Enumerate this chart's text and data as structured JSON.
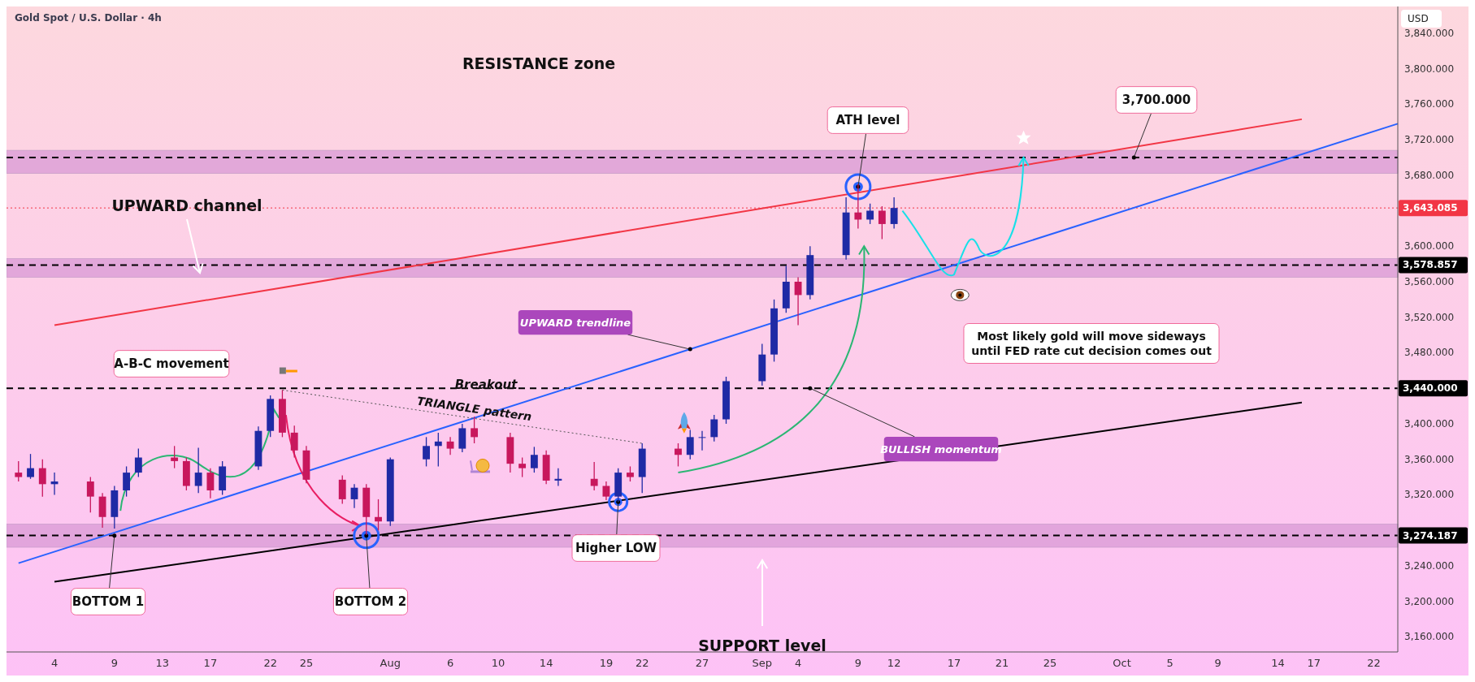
{
  "chart_data": {
    "type": "candlestick",
    "title": "Gold Spot / U.S. Dollar · 4h",
    "ylabel": "USD",
    "x": [
      "--07-01",
      "--07-02",
      "--07-03",
      "--07-04",
      "--07-07",
      "--07-08",
      "--07-09",
      "--07-10",
      "--07-11",
      "--07-14",
      "--07-15",
      "--07-16",
      "--07-17",
      "--07-18",
      "--07-21",
      "--07-22",
      "--07-23",
      "--07-24",
      "--07-25",
      "--07-28",
      "--07-29",
      "--07-30",
      "--07-31",
      "--08-01",
      "--08-04",
      "--08-05",
      "--08-06",
      "--08-07",
      "--08-08",
      "--08-11",
      "--08-12",
      "--08-13",
      "--08-14",
      "--08-15",
      "--08-18",
      "--08-19",
      "--08-20",
      "--08-21",
      "--08-22",
      "--08-25",
      "--08-26",
      "--08-27",
      "--08-28",
      "--08-29",
      "--09-01",
      "--09-02",
      "--09-03",
      "--09-04",
      "--09-05",
      "--09-08",
      "--09-09",
      "--09-10",
      "--09-11",
      "--09-12"
    ],
    "ohlc": [
      [
        3345,
        3358,
        3335,
        3340
      ],
      [
        3340,
        3366,
        3338,
        3350
      ],
      [
        3350,
        3360,
        3318,
        3332
      ],
      [
        3332,
        3345,
        3320,
        3335
      ],
      [
        3335,
        3340,
        3300,
        3318
      ],
      [
        3318,
        3322,
        3283,
        3295
      ],
      [
        3295,
        3330,
        3282,
        3325
      ],
      [
        3325,
        3352,
        3318,
        3345
      ],
      [
        3345,
        3372,
        3340,
        3362
      ],
      [
        3362,
        3375,
        3350,
        3358
      ],
      [
        3358,
        3362,
        3325,
        3330
      ],
      [
        3330,
        3373,
        3322,
        3345
      ],
      [
        3345,
        3350,
        3316,
        3325
      ],
      [
        3325,
        3358,
        3320,
        3352
      ],
      [
        3352,
        3397,
        3348,
        3392
      ],
      [
        3392,
        3432,
        3385,
        3428
      ],
      [
        3428,
        3438,
        3385,
        3390
      ],
      [
        3390,
        3398,
        3362,
        3370
      ],
      [
        3370,
        3375,
        3333,
        3337
      ],
      [
        3337,
        3342,
        3310,
        3315
      ],
      [
        3315,
        3332,
        3305,
        3328
      ],
      [
        3328,
        3332,
        3275,
        3295
      ],
      [
        3295,
        3315,
        3280,
        3290
      ],
      [
        3290,
        3362,
        3285,
        3360
      ],
      [
        3360,
        3385,
        3352,
        3375
      ],
      [
        3375,
        3390,
        3352,
        3380
      ],
      [
        3380,
        3385,
        3365,
        3372
      ],
      [
        3372,
        3400,
        3368,
        3395
      ],
      [
        3395,
        3408,
        3378,
        3385
      ],
      [
        3385,
        3390,
        3345,
        3355
      ],
      [
        3355,
        3362,
        3340,
        3350
      ],
      [
        3350,
        3374,
        3345,
        3365
      ],
      [
        3365,
        3370,
        3332,
        3336
      ],
      [
        3336,
        3350,
        3330,
        3338
      ],
      [
        3338,
        3357,
        3325,
        3330
      ],
      [
        3330,
        3335,
        3314,
        3318
      ],
      [
        3318,
        3350,
        3312,
        3345
      ],
      [
        3345,
        3352,
        3335,
        3340
      ],
      [
        3340,
        3378,
        3322,
        3372
      ],
      [
        3372,
        3378,
        3352,
        3365
      ],
      [
        3365,
        3393,
        3360,
        3385
      ],
      [
        3385,
        3392,
        3370,
        3385
      ],
      [
        3385,
        3410,
        3380,
        3405
      ],
      [
        3405,
        3453,
        3400,
        3448
      ],
      [
        3448,
        3490,
        3443,
        3478
      ],
      [
        3478,
        3540,
        3470,
        3530
      ],
      [
        3530,
        3578,
        3525,
        3560
      ],
      [
        3560,
        3565,
        3511,
        3545
      ],
      [
        3545,
        3600,
        3540,
        3590
      ],
      [
        3590,
        3655,
        3585,
        3638
      ],
      [
        3638,
        3670,
        3620,
        3630
      ],
      [
        3630,
        3648,
        3625,
        3640
      ],
      [
        3640,
        3645,
        3608,
        3625
      ],
      [
        3625,
        3655,
        3620,
        3643.085
      ]
    ],
    "series": [
      {
        "type": "line",
        "x": [
          "--07-04",
          "--10-16"
        ],
        "values": [
          3511,
          3743
        ],
        "color": "#f23645",
        "line_style": "solid"
      },
      {
        "type": "line",
        "x": [
          "--07-01",
          "--10-24"
        ],
        "values": [
          3243,
          3738
        ],
        "color": "#2962ff",
        "line_style": "solid"
      },
      {
        "type": "line",
        "x": [
          "--07-04",
          "--10-16"
        ],
        "values": [
          3222,
          3424
        ],
        "color": "#000000",
        "line_style": "solid"
      },
      {
        "type": "line",
        "x": [
          "--07-23",
          "--08-22"
        ],
        "values": [
          3438,
          3378
        ],
        "color": "#555555",
        "line_style": "dotted"
      }
    ],
    "xlim": [
      "--06-30",
      "--10-24"
    ],
    "xticks": [
      {
        "value": "--07-04",
        "label": "4"
      },
      {
        "value": "--07-09",
        "label": "9"
      },
      {
        "value": "--07-13",
        "label": "13"
      },
      {
        "value": "--07-17",
        "label": "17"
      },
      {
        "value": "--07-22",
        "label": "22"
      },
      {
        "value": "--07-25",
        "label": "25"
      },
      {
        "value": "--08-01",
        "label": "Aug"
      },
      {
        "value": "--08-06",
        "label": "6"
      },
      {
        "value": "--08-10",
        "label": "10"
      },
      {
        "value": "--08-14",
        "label": "14"
      },
      {
        "value": "--08-19",
        "label": "19"
      },
      {
        "value": "--08-22",
        "label": "22"
      },
      {
        "value": "--08-27",
        "label": "27"
      },
      {
        "value": "--09-01",
        "label": "Sep"
      },
      {
        "value": "--09-04",
        "label": "4"
      },
      {
        "value": "--09-09",
        "label": "9"
      },
      {
        "value": "--09-12",
        "label": "12"
      },
      {
        "value": "--09-17",
        "label": "17"
      },
      {
        "value": "--09-21",
        "label": "21"
      },
      {
        "value": "--09-25",
        "label": "25"
      },
      {
        "value": "--10-01",
        "label": "Oct"
      },
      {
        "value": "--10-05",
        "label": "5"
      },
      {
        "value": "--10-09",
        "label": "9"
      },
      {
        "value": "--10-14",
        "label": "14"
      },
      {
        "value": "--10-17",
        "label": "17"
      },
      {
        "value": "--10-22",
        "label": "22"
      }
    ],
    "ylim": [
      3143,
      3870
    ],
    "yticks": [
      {
        "value": 3160,
        "label": "3,160.000"
      },
      {
        "value": 3200,
        "label": "3,200.000"
      },
      {
        "value": 3240,
        "label": "3,240.000"
      },
      {
        "value": 3320,
        "label": "3,320.000"
      },
      {
        "value": 3360,
        "label": "3,360.000"
      },
      {
        "value": 3400,
        "label": "3,400.000"
      },
      {
        "value": 3480,
        "label": "3,480.000"
      },
      {
        "value": 3520,
        "label": "3,520.000"
      },
      {
        "value": 3560,
        "label": "3,560.000"
      },
      {
        "value": 3600,
        "label": "3,600.000"
      },
      {
        "value": 3680,
        "label": "3,680.000"
      },
      {
        "value": 3720,
        "label": "3,720.000"
      },
      {
        "value": 3760,
        "label": "3,760.000"
      },
      {
        "value": 3800,
        "label": "3,800.000"
      },
      {
        "value": 3840,
        "label": "3,840.000"
      }
    ],
    "ref_lines": [
      {
        "axis": "y",
        "value": 3700,
        "line_style": "dashed",
        "color": "#000000"
      },
      {
        "axis": "y",
        "value": 3643.085,
        "label": "3,643.085",
        "line_style": "dotted",
        "color": "#f23645"
      },
      {
        "axis": "y",
        "value": 3578.857,
        "label": "3,578.857",
        "line_style": "dashed",
        "color": "#000000"
      },
      {
        "axis": "y",
        "value": 3440,
        "label": "3,440.000",
        "line_style": "dashed",
        "color": "#000000"
      },
      {
        "axis": "y",
        "value": 3274.187,
        "label": "3,274.187",
        "line_style": "dashed",
        "color": "#000000"
      }
    ],
    "bands": [
      {
        "axis": "y",
        "from": 3682,
        "to": 3708,
        "color": "#d99ad6"
      },
      {
        "axis": "y",
        "from": 3565,
        "to": 3586,
        "color": "#d99ad6"
      },
      {
        "axis": "y",
        "from": 3261,
        "to": 3287,
        "color": "#d99ad6"
      }
    ],
    "annotations": [
      "RESISTANCE zone",
      "UPWARD channel",
      "A-B-C movement",
      "Breakout",
      {
        "text": "TRIANGLE pattern",
        "x": "--08-08",
        "y": 3406
      },
      {
        "text": "UPWARD trendline",
        "x": "--08-26",
        "y": 3484
      },
      {
        "text": "BULLISH momentum",
        "x": "--09-05",
        "y": 3440
      },
      {
        "text": "ATH level",
        "x": "--09-09",
        "y": 3667
      },
      {
        "text": "BOTTOM 1",
        "x": "--07-09",
        "y": 3274
      },
      {
        "text": "BOTTOM 2",
        "x": "--07-30",
        "y": 3274
      },
      {
        "text": "Higher LOW",
        "x": "--08-20",
        "y": 3312
      },
      "SUPPORT level",
      "Most likely gold will move sideways until FED rate cut decision comes out",
      {
        "text": "3,700.000",
        "x": "--10-02",
        "y": 3700
      }
    ],
    "grid": false
  }
}
